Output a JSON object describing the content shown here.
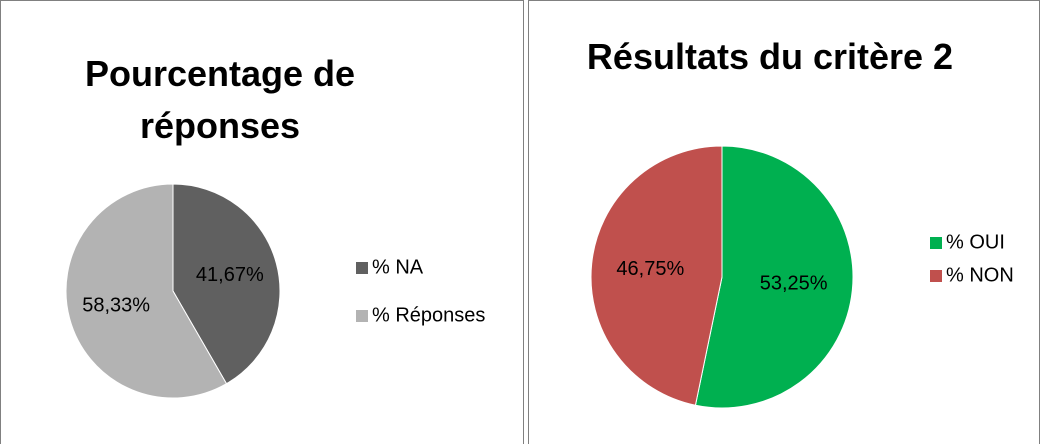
{
  "chart_data": [
    {
      "type": "pie",
      "title": "Pourcentage de réponses",
      "categories": [
        "% NA",
        "% Réponses"
      ],
      "values": [
        41.67,
        58.33
      ],
      "value_labels": [
        "41,67%",
        "58,33%"
      ],
      "colors": [
        "#606060",
        "#b3b3b3"
      ]
    },
    {
      "type": "pie",
      "title": "Résultats du critère 2",
      "categories": [
        "% OUI",
        "% NON"
      ],
      "values": [
        53.25,
        46.75
      ],
      "value_labels": [
        "53,25%",
        "46,75%"
      ],
      "colors": [
        "#00b050",
        "#c0504d"
      ]
    }
  ]
}
